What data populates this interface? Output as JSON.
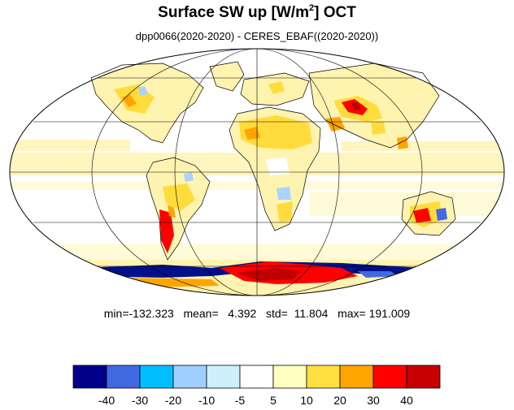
{
  "title": {
    "main": "Surface SW up [W/m",
    "sup": "2",
    "after": "]  OCT"
  },
  "subtitle": "dpp0066(2020-2020) - CERES_EBAF((2020-2020))",
  "stats": {
    "text": "min=-132.323   mean=   4.392   std=  11.804   max= 191.009"
  },
  "colorbar": {
    "levels": [
      "-40",
      "-30",
      "-20",
      "-10",
      "-5",
      "5",
      "10",
      "20",
      "30",
      "40"
    ],
    "colors": [
      "#00008b",
      "#4169e1",
      "#00bfff",
      "#9fcfff",
      "#cfefff",
      "#ffffff",
      "#ffffc0",
      "#ffe040",
      "#ffa500",
      "#ff0000",
      "#c80000"
    ]
  },
  "map": {
    "projection": "mollweide",
    "colors": {
      "light_yellow": "#fff3b0",
      "yellow": "#ffdc3c",
      "orange": "#ffa500",
      "red": "#ff0000",
      "dark_red": "#c00000",
      "dark_blue": "#00108b",
      "blue": "#4169e1",
      "light_blue": "#a8d4ff"
    }
  }
}
